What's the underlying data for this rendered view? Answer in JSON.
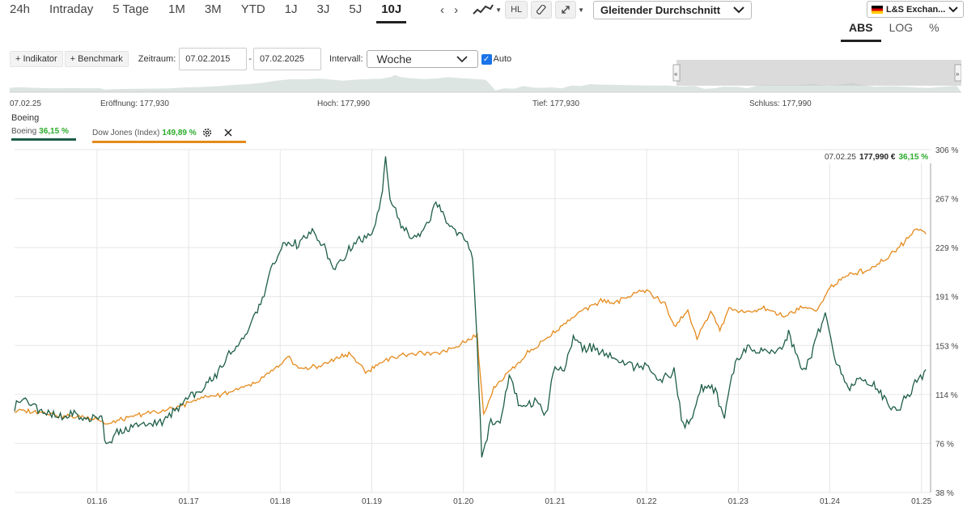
{
  "toolbar": {
    "ranges": [
      "24h",
      "Intraday",
      "5 Tage",
      "1M",
      "3M",
      "YTD",
      "1J",
      "3J",
      "5J",
      "10J"
    ],
    "active_range": "10J",
    "hl_label": "HL",
    "moving_average": "Gleitender Durchschnitt",
    "exchange": "L&S Exchan...",
    "scales": [
      "ABS",
      "LOG",
      "%"
    ],
    "active_scale": "ABS"
  },
  "controls": {
    "indicator_label": "+ Indikator",
    "benchmark_label": "+ Benchmark",
    "period_label": "Zeitraum:",
    "date_from": "07.02.2015",
    "date_to": "07.02.2025",
    "interval_label": "Intervall:",
    "interval_value": "Woche",
    "auto_label": "Auto"
  },
  "ohlc": {
    "date": "07.02.25",
    "open": "Eröffnung: 177,930",
    "high": "Hoch: 177,990",
    "low": "Tief: 177,930",
    "close": "Schluss: 177,990"
  },
  "legend": {
    "title": "Boeing",
    "boeing_name": "Boeing",
    "boeing_pct": "36,15 %",
    "dow_name": "Dow Jones (Index)",
    "dow_pct": "149,89 %"
  },
  "price_tag": {
    "date": "07.02.25",
    "value": "177,990 €",
    "pct": "36,15 %"
  },
  "colors": {
    "boeing": "#1e5e46",
    "dow": "#e58a1c",
    "grid": "#e6e6e6"
  },
  "chart_data": {
    "type": "line",
    "x_tick_labels": [
      "01.16",
      "01.17",
      "01.18",
      "01.19",
      "01.20",
      "01.21",
      "01.22",
      "01.23",
      "01.24",
      "01.25"
    ],
    "x_ticks": [
      2016,
      2017,
      2018,
      2019,
      2020,
      2021,
      2022,
      2023,
      2024,
      2025
    ],
    "y_tick_labels": [
      "38 %",
      "76 %",
      "114 %",
      "153 %",
      "191 %",
      "229 %",
      "267 %",
      "306 %"
    ],
    "xlim": [
      2015.1,
      2025.1
    ],
    "ylim": [
      38,
      306
    ],
    "grid": true,
    "series": [
      {
        "name": "Boeing",
        "color": "#1e5e46",
        "points": [
          [
            2015.1,
            105
          ],
          [
            2015.2,
            112
          ],
          [
            2015.3,
            106
          ],
          [
            2015.45,
            100
          ],
          [
            2015.6,
            96
          ],
          [
            2015.75,
            100
          ],
          [
            2015.9,
            95
          ],
          [
            2016.05,
            98
          ],
          [
            2016.1,
            76
          ],
          [
            2016.2,
            83
          ],
          [
            2016.35,
            88
          ],
          [
            2016.55,
            92
          ],
          [
            2016.75,
            94
          ],
          [
            2016.85,
            103
          ],
          [
            2016.95,
            110
          ],
          [
            2017.1,
            116
          ],
          [
            2017.25,
            125
          ],
          [
            2017.4,
            142
          ],
          [
            2017.6,
            160
          ],
          [
            2017.75,
            178
          ],
          [
            2017.9,
            212
          ],
          [
            2018.05,
            233
          ],
          [
            2018.2,
            232
          ],
          [
            2018.35,
            242
          ],
          [
            2018.5,
            226
          ],
          [
            2018.6,
            212
          ],
          [
            2018.75,
            228
          ],
          [
            2018.9,
            235
          ],
          [
            2019.0,
            240
          ],
          [
            2019.1,
            265
          ],
          [
            2019.15,
            300
          ],
          [
            2019.2,
            268
          ],
          [
            2019.3,
            250
          ],
          [
            2019.45,
            235
          ],
          [
            2019.6,
            245
          ],
          [
            2019.7,
            265
          ],
          [
            2019.85,
            248
          ],
          [
            2019.95,
            240
          ],
          [
            2020.1,
            225
          ],
          [
            2020.15,
            155
          ],
          [
            2020.2,
            65
          ],
          [
            2020.3,
            95
          ],
          [
            2020.4,
            90
          ],
          [
            2020.5,
            130
          ],
          [
            2020.6,
            108
          ],
          [
            2020.7,
            104
          ],
          [
            2020.8,
            110
          ],
          [
            2020.9,
            97
          ],
          [
            2021.0,
            138
          ],
          [
            2021.1,
            130
          ],
          [
            2021.2,
            160
          ],
          [
            2021.3,
            152
          ],
          [
            2021.5,
            148
          ],
          [
            2021.7,
            142
          ],
          [
            2021.9,
            137
          ],
          [
            2022.0,
            140
          ],
          [
            2022.15,
            125
          ],
          [
            2022.3,
            133
          ],
          [
            2022.4,
            88
          ],
          [
            2022.5,
            97
          ],
          [
            2022.6,
            121
          ],
          [
            2022.75,
            118
          ],
          [
            2022.85,
            98
          ],
          [
            2022.95,
            135
          ],
          [
            2023.1,
            150
          ],
          [
            2023.25,
            148
          ],
          [
            2023.4,
            146
          ],
          [
            2023.55,
            162
          ],
          [
            2023.7,
            133
          ],
          [
            2023.8,
            145
          ],
          [
            2023.95,
            180
          ],
          [
            2024.05,
            145
          ],
          [
            2024.2,
            120
          ],
          [
            2024.35,
            128
          ],
          [
            2024.5,
            120
          ],
          [
            2024.65,
            107
          ],
          [
            2024.75,
            103
          ],
          [
            2024.85,
            113
          ],
          [
            2024.95,
            125
          ],
          [
            2025.05,
            134
          ]
        ]
      },
      {
        "name": "Dow Jones (Index)",
        "color": "#e58a1c",
        "points": [
          [
            2015.1,
            102
          ],
          [
            2015.4,
            101
          ],
          [
            2015.6,
            98
          ],
          [
            2015.8,
            97
          ],
          [
            2016.0,
            96
          ],
          [
            2016.1,
            91
          ],
          [
            2016.3,
            95
          ],
          [
            2016.5,
            100
          ],
          [
            2016.7,
            101
          ],
          [
            2016.9,
            105
          ],
          [
            2017.1,
            111
          ],
          [
            2017.3,
            114
          ],
          [
            2017.5,
            118
          ],
          [
            2017.7,
            122
          ],
          [
            2017.9,
            132
          ],
          [
            2018.1,
            143
          ],
          [
            2018.2,
            135
          ],
          [
            2018.4,
            136
          ],
          [
            2018.6,
            142
          ],
          [
            2018.75,
            147
          ],
          [
            2018.95,
            132
          ],
          [
            2019.1,
            140
          ],
          [
            2019.3,
            145
          ],
          [
            2019.5,
            147
          ],
          [
            2019.7,
            146
          ],
          [
            2019.9,
            152
          ],
          [
            2020.05,
            158
          ],
          [
            2020.15,
            160
          ],
          [
            2020.22,
            100
          ],
          [
            2020.35,
            122
          ],
          [
            2020.5,
            132
          ],
          [
            2020.7,
            147
          ],
          [
            2020.9,
            158
          ],
          [
            2021.1,
            170
          ],
          [
            2021.3,
            180
          ],
          [
            2021.5,
            188
          ],
          [
            2021.7,
            187
          ],
          [
            2021.9,
            195
          ],
          [
            2022.0,
            196
          ],
          [
            2022.2,
            185
          ],
          [
            2022.3,
            168
          ],
          [
            2022.45,
            180
          ],
          [
            2022.55,
            158
          ],
          [
            2022.7,
            180
          ],
          [
            2022.8,
            165
          ],
          [
            2022.9,
            182
          ],
          [
            2023.1,
            178
          ],
          [
            2023.3,
            182
          ],
          [
            2023.5,
            175
          ],
          [
            2023.7,
            183
          ],
          [
            2023.85,
            180
          ],
          [
            2024.0,
            198
          ],
          [
            2024.2,
            208
          ],
          [
            2024.4,
            212
          ],
          [
            2024.6,
            220
          ],
          [
            2024.8,
            233
          ],
          [
            2024.95,
            245
          ],
          [
            2025.05,
            240
          ]
        ]
      }
    ]
  }
}
